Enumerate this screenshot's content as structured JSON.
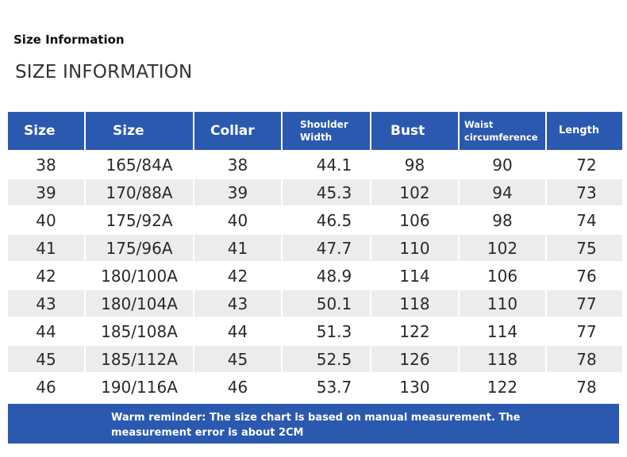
{
  "header": {
    "small_title": "Size Information",
    "big_title": "SIZE INFORMATION"
  },
  "table": {
    "columns": [
      "Size",
      "Size",
      "Collar",
      "Shoulder Width",
      "Bust",
      "Waist circumference",
      "Length"
    ],
    "column_lines": {
      "shoulder": [
        "Shoulder",
        "Width"
      ],
      "waist": [
        "Waist",
        "circumference"
      ]
    },
    "rows": [
      [
        "38",
        "165/84A",
        "38",
        "44.1",
        "98",
        "90",
        "72"
      ],
      [
        "39",
        "170/88A",
        "39",
        "45.3",
        "102",
        "94",
        "73"
      ],
      [
        "40",
        "175/92A",
        "40",
        "46.5",
        "106",
        "98",
        "74"
      ],
      [
        "41",
        "175/96A",
        "41",
        "47.7",
        "110",
        "102",
        "75"
      ],
      [
        "42",
        "180/100A",
        "42",
        "48.9",
        "114",
        "106",
        "76"
      ],
      [
        "43",
        "180/104A",
        "43",
        "50.1",
        "118",
        "110",
        "77"
      ],
      [
        "44",
        "185/108A",
        "44",
        "51.3",
        "122",
        "114",
        "77"
      ],
      [
        "45",
        "185/112A",
        "45",
        "52.5",
        "126",
        "118",
        "78"
      ],
      [
        "46",
        "190/116A",
        "46",
        "53.7",
        "130",
        "122",
        "78"
      ]
    ]
  },
  "footer": {
    "reminder_line1": "Warm reminder: The size chart is based on manual measurement. The",
    "reminder_line2": "measurement error is about 2CM"
  },
  "colors": {
    "header_blue": "#2c59b0",
    "stripe_gray": "#ececec"
  }
}
